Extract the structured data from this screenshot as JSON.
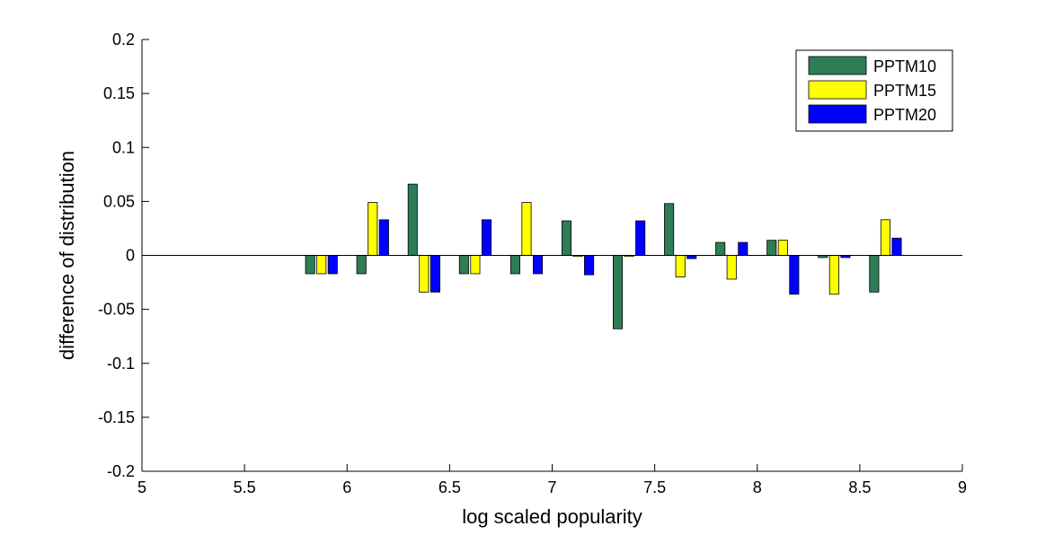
{
  "chart_data": {
    "type": "bar",
    "title": "",
    "xlabel": "log scaled popularity",
    "ylabel": "difference of distribution",
    "xlim": [
      5,
      9
    ],
    "ylim": [
      -0.2,
      0.2
    ],
    "x_ticks": [
      5,
      5.5,
      6,
      6.5,
      7,
      7.5,
      8,
      8.5,
      9
    ],
    "x_tick_labels": [
      "5",
      "5.5",
      "6",
      "6.5",
      "7",
      "7.5",
      "8",
      "8.5",
      "9"
    ],
    "y_ticks": [
      -0.2,
      -0.15,
      -0.1,
      -0.05,
      0,
      0.05,
      0.1,
      0.15,
      0.2
    ],
    "y_tick_labels": [
      "-0.2",
      "-0.15",
      "-0.1",
      "-0.05",
      "0",
      "0.05",
      "0.1",
      "0.15",
      "0.2"
    ],
    "grid": false,
    "legend_position": "top-right",
    "x": [
      5.875,
      6.125,
      6.375,
      6.625,
      6.875,
      7.125,
      7.375,
      7.625,
      7.875,
      8.125,
      8.375,
      8.625
    ],
    "series": [
      {
        "name": "PPTM10",
        "color": "#2e7d54",
        "values": [
          -0.017,
          -0.017,
          0.066,
          -0.017,
          -0.017,
          0.032,
          -0.068,
          0.048,
          0.012,
          0.014,
          -0.002,
          -0.034
        ]
      },
      {
        "name": "PPTM15",
        "color": "#ffff00",
        "values": [
          -0.017,
          0.049,
          -0.034,
          -0.017,
          0.049,
          -0.001,
          -0.001,
          -0.02,
          -0.022,
          0.014,
          -0.036,
          0.033
        ]
      },
      {
        "name": "PPTM20",
        "color": "#0000ff",
        "values": [
          -0.017,
          0.033,
          -0.034,
          0.033,
          -0.017,
          -0.018,
          0.032,
          -0.003,
          0.012,
          -0.036,
          -0.002,
          0.016
        ]
      }
    ]
  }
}
